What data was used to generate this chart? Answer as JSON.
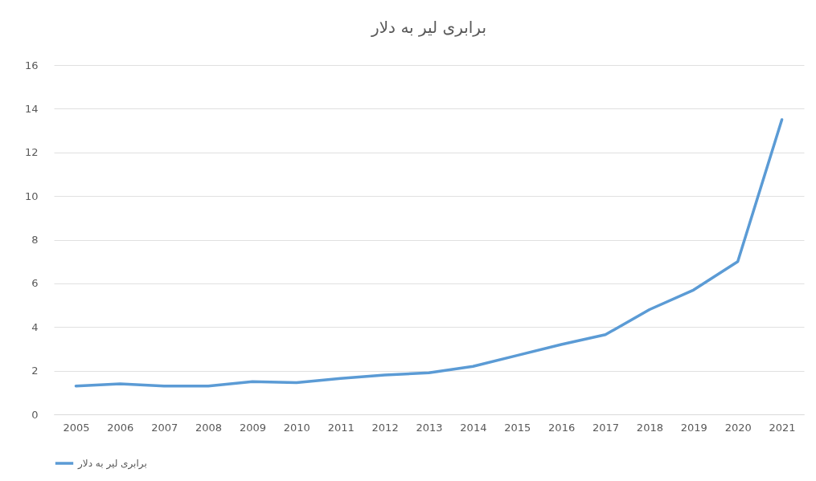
{
  "chart_data": {
    "type": "line",
    "title": "برابری لیر به دلار",
    "categories": [
      "2005",
      "2006",
      "2007",
      "2008",
      "2009",
      "2010",
      "2011",
      "2012",
      "2013",
      "2014",
      "2015",
      "2016",
      "2017",
      "2018",
      "2019",
      "2020",
      "2021"
    ],
    "series": [
      {
        "name": "برابری لیر به دلار",
        "color": "#5b9bd5",
        "values": [
          1.3,
          1.4,
          1.3,
          1.3,
          1.5,
          1.45,
          1.65,
          1.8,
          1.9,
          2.2,
          2.7,
          3.2,
          3.65,
          4.8,
          5.7,
          7.0,
          13.5
        ]
      }
    ],
    "ylim": [
      0,
      16
    ],
    "yticks": [
      0,
      2,
      4,
      6,
      8,
      10,
      12,
      14,
      16
    ],
    "grid": "y",
    "legend": "bottom"
  }
}
